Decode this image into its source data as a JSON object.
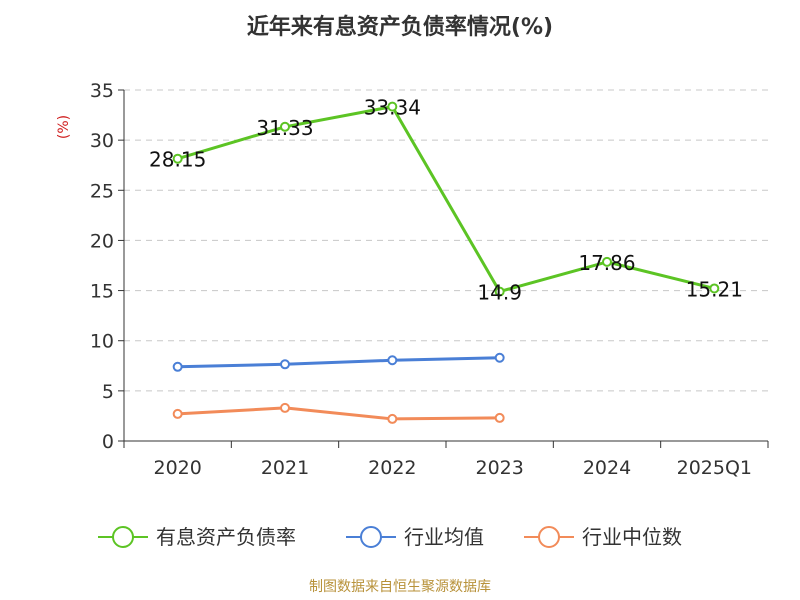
{
  "chart_data": {
    "type": "line",
    "title": "近年来有息资产负债率情况(%)",
    "ylabel": "(%)",
    "categories": [
      "2020",
      "2021",
      "2022",
      "2023",
      "2024",
      "2025Q1"
    ],
    "ylim": [
      0,
      35
    ],
    "yticks": [
      0,
      5,
      10,
      15,
      20,
      25,
      30,
      35
    ],
    "grid": true,
    "legend_position": "bottom",
    "series": [
      {
        "name": "有息资产负债率",
        "color": "#5cc424",
        "values": [
          28.15,
          31.33,
          33.34,
          14.9,
          17.86,
          15.21
        ],
        "labels": [
          "28.15",
          "31.33",
          "33.34",
          "14.9",
          "17.86",
          "15.21"
        ]
      },
      {
        "name": "行业均值",
        "color": "#4a7fd6",
        "values": [
          7.4,
          7.65,
          8.05,
          8.3,
          null,
          null
        ]
      },
      {
        "name": "行业中位数",
        "color": "#f28b59",
        "values": [
          2.7,
          3.3,
          2.2,
          2.3,
          null,
          null
        ]
      }
    ],
    "source": "制图数据来自恒生聚源数据库"
  }
}
